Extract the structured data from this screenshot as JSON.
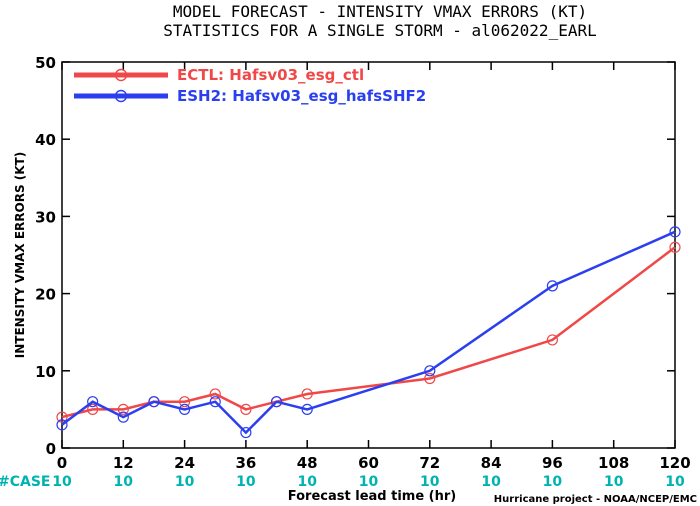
{
  "chart_data": {
    "type": "line",
    "title_line1": "MODEL FORECAST - INTENSITY VMAX ERRORS (KT)",
    "title_line2": "STATISTICS FOR A SINGLE STORM - al062022_EARL",
    "xlabel": "Forecast lead time (hr)",
    "ylabel": "INTENSITY VMAX ERRORS (KT)",
    "xlim": [
      0,
      120
    ],
    "ylim": [
      0,
      50
    ],
    "x_ticks": [
      0,
      12,
      24,
      36,
      48,
      60,
      72,
      84,
      96,
      108,
      120
    ],
    "y_ticks": [
      0,
      10,
      20,
      30,
      40,
      50
    ],
    "legend_position": "top-left",
    "series": [
      {
        "name": "ECTL: Hafsv03_esg_ctl",
        "color": "#f04848",
        "x": [
          0,
          6,
          12,
          18,
          24,
          30,
          36,
          42,
          48,
          72,
          96,
          120
        ],
        "values": [
          4,
          5,
          5,
          6,
          6,
          7,
          5,
          6,
          7,
          9,
          14,
          26
        ]
      },
      {
        "name": "ESH2: Hafsv03_esg_hafsSHF2",
        "color": "#2b3ff0",
        "x": [
          0,
          6,
          12,
          18,
          24,
          30,
          36,
          42,
          48,
          72,
          96,
          120
        ],
        "values": [
          3,
          6,
          4,
          6,
          5,
          6,
          2,
          6,
          5,
          10,
          21,
          28
        ]
      }
    ],
    "case_label": "#CASE",
    "case_counts": [
      {
        "x": 0,
        "count": "10"
      },
      {
        "x": 12,
        "count": "10"
      },
      {
        "x": 24,
        "count": "10"
      },
      {
        "x": 36,
        "count": "10"
      },
      {
        "x": 48,
        "count": "10"
      },
      {
        "x": 60,
        "count": "10"
      },
      {
        "x": 72,
        "count": "10"
      },
      {
        "x": 84,
        "count": "10"
      },
      {
        "x": 96,
        "count": "10"
      },
      {
        "x": 108,
        "count": "10"
      },
      {
        "x": 120,
        "count": "10"
      }
    ],
    "credit": "Hurricane project - NOAA/NCEP/EMC"
  }
}
